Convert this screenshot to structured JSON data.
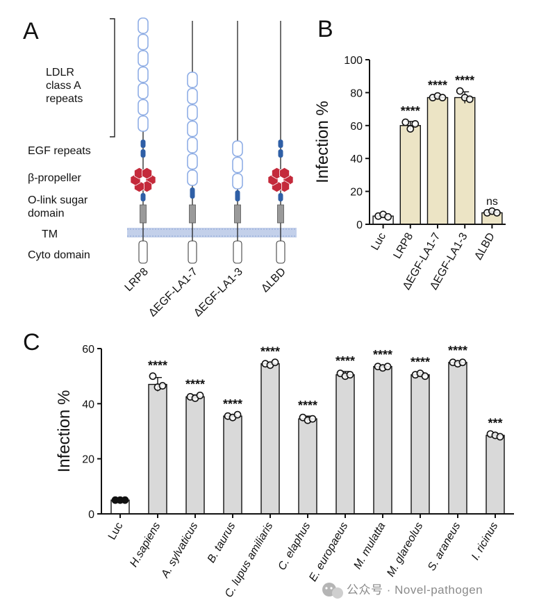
{
  "panels": {
    "a": "A",
    "b": "B",
    "c": "C"
  },
  "diagram": {
    "domain_labels": {
      "ldlr_1": "LDLR",
      "ldlr_2": "class A",
      "ldlr_3": "repeats",
      "egf": "EGF repeats",
      "propeller": "β-propeller",
      "olink_1": "O-link sugar",
      "olink_2": "domain",
      "tm": "TM",
      "cyto": "Cyto domain"
    },
    "constructs": [
      {
        "name": "LRP8",
        "repeats": [
          "1",
          "2",
          "3",
          "4",
          "5",
          "6",
          "7"
        ],
        "has_propeller": true
      },
      {
        "name": "ΔEGF-LA1-7",
        "repeats": [
          "1",
          "2",
          "3",
          "4",
          "5",
          "6",
          "7"
        ],
        "has_propeller": false
      },
      {
        "name": "ΔEGF-LA1-3",
        "repeats": [
          "1",
          "2",
          "3"
        ],
        "has_propeller": false
      },
      {
        "name": "ΔLBD",
        "repeats": [],
        "has_propeller": true
      }
    ]
  },
  "chart_data": [
    {
      "type": "bar",
      "panel": "B",
      "title": "",
      "xlabel": "",
      "ylabel": "Infection %",
      "ylim": [
        0,
        100
      ],
      "yticks": [
        0,
        20,
        40,
        60,
        80,
        100
      ],
      "categories": [
        "Luc",
        "LRP8",
        "ΔEGF-LA1-7",
        "ΔEGF-LA1-3",
        "ΔLBD"
      ],
      "values": [
        5,
        60,
        77,
        77,
        7
      ],
      "errors": [
        1,
        2.5,
        1,
        3.5,
        1
      ],
      "points": [
        [
          5,
          6,
          4.5
        ],
        [
          62,
          58,
          61
        ],
        [
          77,
          78,
          77
        ],
        [
          81,
          77,
          76
        ],
        [
          7,
          8,
          7
        ]
      ],
      "significance": [
        "",
        "****",
        "****",
        "****",
        "ns"
      ],
      "bar_colors": [
        "#ffffff",
        "#ece4c5",
        "#ece4c5",
        "#ece4c5",
        "#ece4c5"
      ]
    },
    {
      "type": "bar",
      "panel": "C",
      "title": "",
      "xlabel": "",
      "ylabel": "Infection %",
      "ylim": [
        0,
        60
      ],
      "yticks": [
        0,
        20,
        40,
        60
      ],
      "categories": [
        "Luc",
        "H.sapiens",
        "A. sylvaticus",
        "B. taurus",
        "C. lupus amiliaris",
        "C. elaphus",
        "E. europaeus",
        "M. mulatta",
        "M. glareolus",
        "S. araneus",
        "I. ricinus"
      ],
      "italic_categories": [
        false,
        true,
        true,
        true,
        true,
        true,
        true,
        true,
        true,
        true,
        true
      ],
      "values": [
        5,
        47,
        42.5,
        35.5,
        54.5,
        34.5,
        50.5,
        53.5,
        50.5,
        55,
        28.5
      ],
      "errors": [
        0.3,
        2.5,
        0.7,
        0.5,
        0.6,
        1,
        1.2,
        0.5,
        0.8,
        0.4,
        0.6
      ],
      "points": [
        [
          5,
          5,
          5
        ],
        [
          50,
          46,
          46.5
        ],
        [
          42.5,
          42,
          43
        ],
        [
          35.5,
          35,
          36
        ],
        [
          54.5,
          54,
          55
        ],
        [
          35,
          34,
          34.5
        ],
        [
          51,
          50,
          50.5
        ],
        [
          53.5,
          53,
          53.5
        ],
        [
          50.5,
          51,
          50
        ],
        [
          55,
          54.5,
          55
        ],
        [
          29,
          28.5,
          28
        ]
      ],
      "filled_points": [
        true,
        false,
        false,
        false,
        false,
        false,
        false,
        false,
        false,
        false,
        false
      ],
      "significance": [
        "",
        "****",
        "****",
        "****",
        "****",
        "****",
        "****",
        "****",
        "****",
        "****",
        "***"
      ],
      "bar_colors": [
        "#ffffff",
        "#d9d9d9",
        "#d9d9d9",
        "#d9d9d9",
        "#d9d9d9",
        "#d9d9d9",
        "#d9d9d9",
        "#d9d9d9",
        "#d9d9d9",
        "#d9d9d9",
        "#d9d9d9"
      ]
    }
  ],
  "watermark": {
    "icon": "wechat-icon",
    "text": "公众号 · Novel-pathogen"
  },
  "colors": {
    "repeat_border": "#8faee6",
    "egf": "#2f5fa6",
    "propeller": "#c42a3b",
    "membrane": "#c3d0ea"
  }
}
